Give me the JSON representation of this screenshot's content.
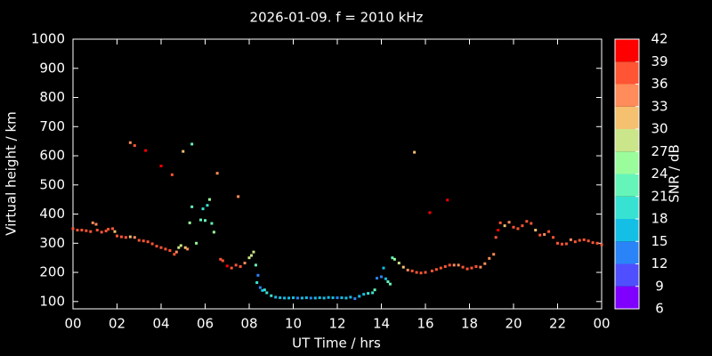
{
  "chart_data": {
    "type": "scatter",
    "title": "2026-01-09. f = 2010 kHz",
    "x_label": "UT Time / hrs",
    "y_label": "Virtual height / km",
    "colorbar_label": "SNR / dB",
    "xlim": [
      0,
      24
    ],
    "xticks": [
      {
        "value": 0,
        "label": "00"
      },
      {
        "value": 2,
        "label": "02"
      },
      {
        "value": 4,
        "label": "04"
      },
      {
        "value": 6,
        "label": "06"
      },
      {
        "value": 8,
        "label": "08"
      },
      10,
      12,
      14,
      16,
      18,
      20,
      22,
      {
        "value": 24,
        "label": "00"
      }
    ],
    "ylim": [
      75,
      1000
    ],
    "yticks": [
      100,
      200,
      300,
      400,
      500,
      600,
      700,
      800,
      900,
      1000
    ],
    "clim": [
      6,
      42
    ],
    "cticks": [
      6,
      9,
      12,
      15,
      18,
      21,
      24,
      27,
      30,
      33,
      36,
      39,
      42
    ],
    "colors": [
      "#7f00ff",
      "#4f4fff",
      "#2a84f8",
      "#14bfe6",
      "#38e2d2",
      "#66f5b8",
      "#9bfc9c",
      "#cbe58a",
      "#f5c070",
      "#ff8c5a",
      "#ff5535",
      "#ff0000"
    ],
    "x": [
      0.0,
      0.2,
      0.4,
      0.6,
      0.8,
      0.9,
      1.05,
      1.1,
      1.3,
      1.5,
      1.6,
      1.8,
      1.9,
      2.0,
      2.2,
      2.4,
      2.6,
      2.8,
      3.0,
      3.2,
      3.4,
      3.6,
      3.8,
      4.0,
      4.2,
      4.4,
      4.6,
      4.7,
      4.8,
      4.9,
      5.1,
      5.2,
      2.6,
      2.8,
      3.3,
      4.0,
      4.5,
      5.0,
      5.4,
      5.3,
      5.4,
      5.6,
      5.8,
      5.9,
      6.0,
      6.1,
      6.2,
      6.3,
      6.4,
      6.55,
      6.7,
      6.8,
      7.0,
      7.2,
      7.4,
      7.5,
      7.6,
      7.8,
      8.0,
      8.1,
      8.2,
      8.3,
      8.4,
      8.35,
      8.5,
      8.6,
      8.7,
      8.8,
      9.0,
      9.2,
      9.4,
      9.6,
      9.8,
      10.0,
      10.2,
      10.4,
      10.6,
      10.8,
      11.0,
      11.2,
      11.4,
      11.6,
      11.8,
      12.0,
      12.2,
      12.4,
      12.6,
      12.8,
      13.0,
      13.2,
      13.4,
      13.6,
      13.7,
      13.8,
      14.0,
      14.1,
      14.2,
      14.3,
      14.4,
      14.5,
      14.6,
      14.8,
      15.0,
      15.2,
      15.4,
      15.5,
      15.6,
      15.8,
      16.0,
      16.2,
      16.3,
      16.5,
      16.7,
      16.9,
      17.0,
      17.1,
      17.3,
      17.5,
      17.7,
      17.9,
      18.1,
      18.3,
      18.5,
      18.7,
      18.9,
      19.1,
      19.2,
      19.3,
      19.4,
      19.6,
      19.8,
      20.0,
      20.2,
      20.4,
      20.6,
      20.8,
      21.0,
      21.2,
      21.4,
      21.6,
      21.8,
      22.0,
      22.2,
      22.4,
      22.6,
      22.8,
      23.0,
      23.2,
      23.4,
      23.6,
      23.8,
      24.0
    ],
    "y": [
      350,
      345,
      345,
      343,
      340,
      370,
      365,
      345,
      338,
      342,
      348,
      350,
      340,
      325,
      322,
      320,
      322,
      320,
      310,
      308,
      305,
      298,
      290,
      285,
      280,
      275,
      262,
      270,
      285,
      292,
      285,
      280,
      645,
      635,
      618,
      565,
      535,
      615,
      640,
      370,
      425,
      300,
      380,
      418,
      378,
      430,
      450,
      368,
      338,
      540,
      245,
      240,
      222,
      215,
      225,
      460,
      220,
      232,
      250,
      258,
      270,
      225,
      190,
      165,
      148,
      138,
      140,
      130,
      120,
      115,
      113,
      112,
      112,
      113,
      112,
      112,
      113,
      112,
      112,
      113,
      112,
      114,
      113,
      113,
      113,
      112,
      115,
      110,
      118,
      125,
      128,
      130,
      140,
      180,
      185,
      215,
      178,
      168,
      160,
      250,
      245,
      232,
      218,
      208,
      205,
      612,
      200,
      198,
      200,
      405,
      205,
      210,
      215,
      220,
      448,
      225,
      225,
      225,
      218,
      212,
      215,
      220,
      218,
      230,
      248,
      262,
      320,
      345,
      370,
      360,
      372,
      355,
      350,
      360,
      375,
      368,
      345,
      328,
      330,
      340,
      320,
      300,
      297,
      298,
      312,
      305,
      310,
      312,
      308,
      302,
      300,
      295
    ],
    "snr": [
      37,
      37,
      37,
      37,
      37,
      34,
      34,
      37,
      37,
      37,
      37,
      37,
      31,
      37,
      37,
      37,
      31,
      34,
      37,
      37,
      37,
      37,
      37,
      37,
      37,
      37,
      37,
      34,
      28,
      28,
      31,
      34,
      34,
      37,
      40,
      40,
      37,
      31,
      22,
      25,
      22,
      25,
      22,
      19,
      22,
      19,
      25,
      22,
      25,
      34,
      37,
      37,
      40,
      37,
      37,
      34,
      37,
      34,
      28,
      28,
      28,
      22,
      13,
      19,
      13,
      16,
      19,
      19,
      19,
      16,
      16,
      16,
      16,
      16,
      13,
      16,
      16,
      13,
      16,
      16,
      16,
      16,
      16,
      13,
      16,
      16,
      16,
      13,
      16,
      16,
      19,
      19,
      22,
      13,
      13,
      16,
      16,
      22,
      22,
      22,
      25,
      28,
      31,
      34,
      37,
      31,
      37,
      37,
      37,
      40,
      37,
      37,
      37,
      37,
      40,
      37,
      34,
      34,
      37,
      37,
      37,
      37,
      34,
      34,
      34,
      34,
      37,
      40,
      37,
      31,
      34,
      37,
      37,
      37,
      37,
      37,
      31,
      37,
      34,
      37,
      37,
      37,
      37,
      37,
      34,
      37,
      37,
      37,
      37,
      37,
      37,
      37
    ]
  }
}
